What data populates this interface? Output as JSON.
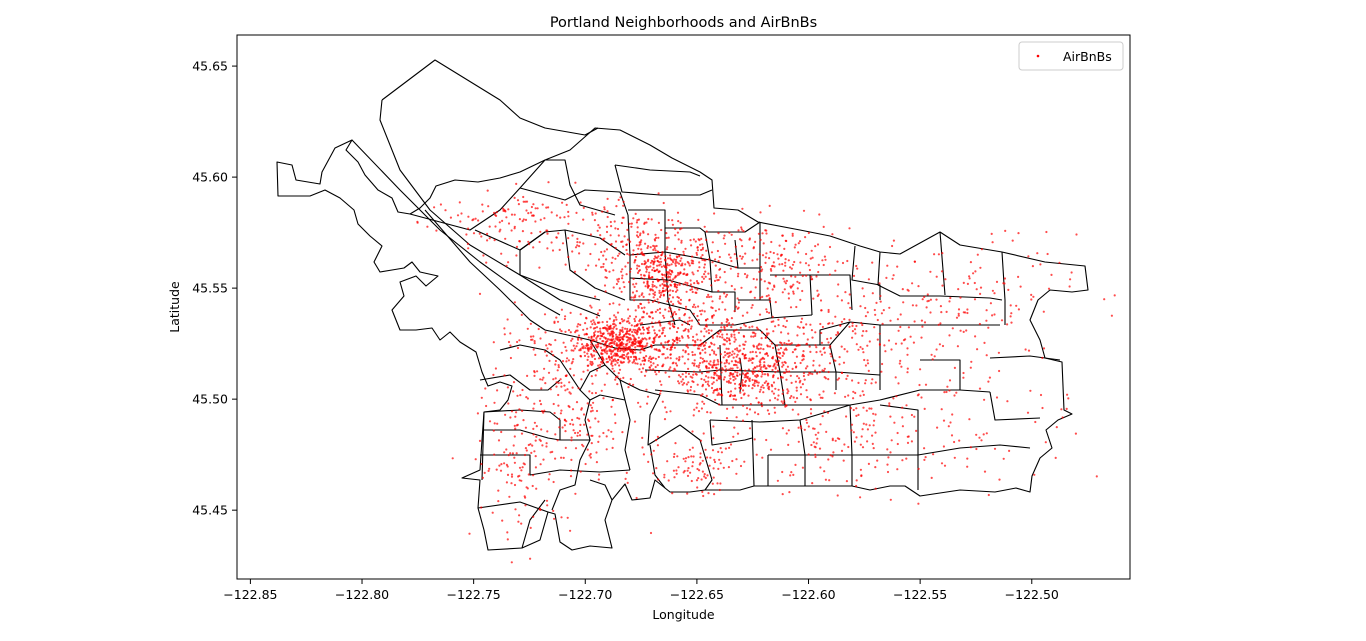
{
  "chart_data": {
    "type": "scatter",
    "title": "Portland Neighborhoods and AirBnBs",
    "xlabel": "Longitude",
    "ylabel": "Latitude",
    "xlim": [
      -122.856,
      -122.456
    ],
    "ylim": [
      45.419,
      45.664
    ],
    "xticks": [
      -122.85,
      -122.8,
      -122.75,
      -122.7,
      -122.65,
      -122.6,
      -122.55,
      -122.5
    ],
    "xtick_labels": [
      "−122.85",
      "−122.80",
      "−122.75",
      "−122.70",
      "−122.65",
      "−122.60",
      "−122.55",
      "−122.50"
    ],
    "yticks": [
      45.45,
      45.5,
      45.55,
      45.6,
      45.65
    ],
    "ytick_labels": [
      "45.45",
      "45.50",
      "45.55",
      "45.60",
      "45.65"
    ],
    "grid": false,
    "legend": {
      "position": "top-right",
      "entries": [
        "AirBnBs"
      ]
    },
    "series": [
      {
        "name": "AirBnBs",
        "color": "#ff0000",
        "marker": "point",
        "density_clusters": [
          {
            "lon": -122.685,
            "lat": 45.525,
            "spread_lon": 0.01,
            "spread_lat": 0.006,
            "weight": 560
          },
          {
            "lon": -122.665,
            "lat": 45.556,
            "spread_lon": 0.012,
            "spread_lat": 0.009,
            "weight": 420
          },
          {
            "lon": -122.63,
            "lat": 45.51,
            "spread_lon": 0.016,
            "spread_lat": 0.008,
            "weight": 420
          },
          {
            "lon": -122.645,
            "lat": 45.527,
            "spread_lon": 0.018,
            "spread_lat": 0.008,
            "weight": 300
          },
          {
            "lon": -122.62,
            "lat": 45.56,
            "spread_lon": 0.02,
            "spread_lat": 0.01,
            "weight": 220
          },
          {
            "lon": -122.7,
            "lat": 45.575,
            "spread_lon": 0.025,
            "spread_lat": 0.01,
            "weight": 180
          },
          {
            "lon": -122.7,
            "lat": 45.49,
            "spread_lon": 0.02,
            "spread_lat": 0.018,
            "weight": 220
          },
          {
            "lon": -122.6,
            "lat": 45.52,
            "spread_lon": 0.02,
            "spread_lat": 0.012,
            "weight": 170
          },
          {
            "lon": -122.59,
            "lat": 45.48,
            "spread_lon": 0.025,
            "spread_lat": 0.012,
            "weight": 150
          },
          {
            "lon": -122.65,
            "lat": 45.47,
            "spread_lon": 0.008,
            "spread_lat": 0.006,
            "weight": 80
          },
          {
            "lon": -122.56,
            "lat": 45.54,
            "spread_lon": 0.025,
            "spread_lat": 0.015,
            "weight": 150
          },
          {
            "lon": -122.53,
            "lat": 45.5,
            "spread_lon": 0.025,
            "spread_lat": 0.02,
            "weight": 110
          },
          {
            "lon": -122.73,
            "lat": 45.47,
            "spread_lon": 0.01,
            "spread_lat": 0.018,
            "weight": 100
          },
          {
            "lon": -122.715,
            "lat": 45.52,
            "spread_lon": 0.012,
            "spread_lat": 0.01,
            "weight": 90
          },
          {
            "lon": -122.74,
            "lat": 45.58,
            "spread_lon": 0.015,
            "spread_lat": 0.007,
            "weight": 70
          },
          {
            "lon": -122.52,
            "lat": 45.55,
            "spread_lon": 0.02,
            "spread_lat": 0.012,
            "weight": 60
          }
        ]
      }
    ],
    "boundary_color": "#000000"
  }
}
